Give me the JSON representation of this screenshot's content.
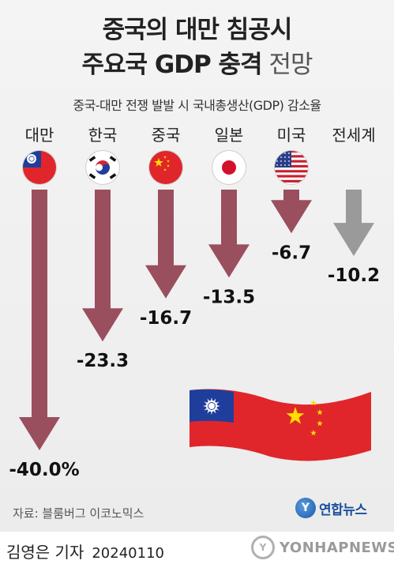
{
  "title_line1": "중국의 대만 침공시",
  "title_line2_bold": "주요국 GDP 충격",
  "title_line2_light": " 전망",
  "subtitle": "중국-대만 전쟁 발발 시 국내총생산(GDP) 감소율",
  "source": "자료: 블룸버그 이코노믹스",
  "agency_logo": "연합뉴스",
  "byline": "김영은 기자",
  "date": "20240110",
  "watermark": "YONHAPNEWS",
  "colors": {
    "bar": "#9a4f5e",
    "bar_world": "#9a9a9a",
    "flag_red": "#e0262a",
    "flag_blue": "#1f3e9c"
  },
  "chart_data": {
    "type": "bar",
    "orientation": "vertical-down-arrows",
    "categories": [
      "대만",
      "한국",
      "중국",
      "일본",
      "미국",
      "전세계"
    ],
    "values": [
      -40.0,
      -23.3,
      -16.7,
      -13.5,
      -6.7,
      -10.2
    ],
    "value_labels": [
      "-40.0%",
      "-23.3",
      "-16.7",
      "-13.5",
      "-6.7",
      "-10.2"
    ],
    "flags": [
      "taiwan-flag",
      "south-korea-flag",
      "china-flag",
      "japan-flag",
      "us-flag",
      null
    ],
    "unit": "%"
  }
}
